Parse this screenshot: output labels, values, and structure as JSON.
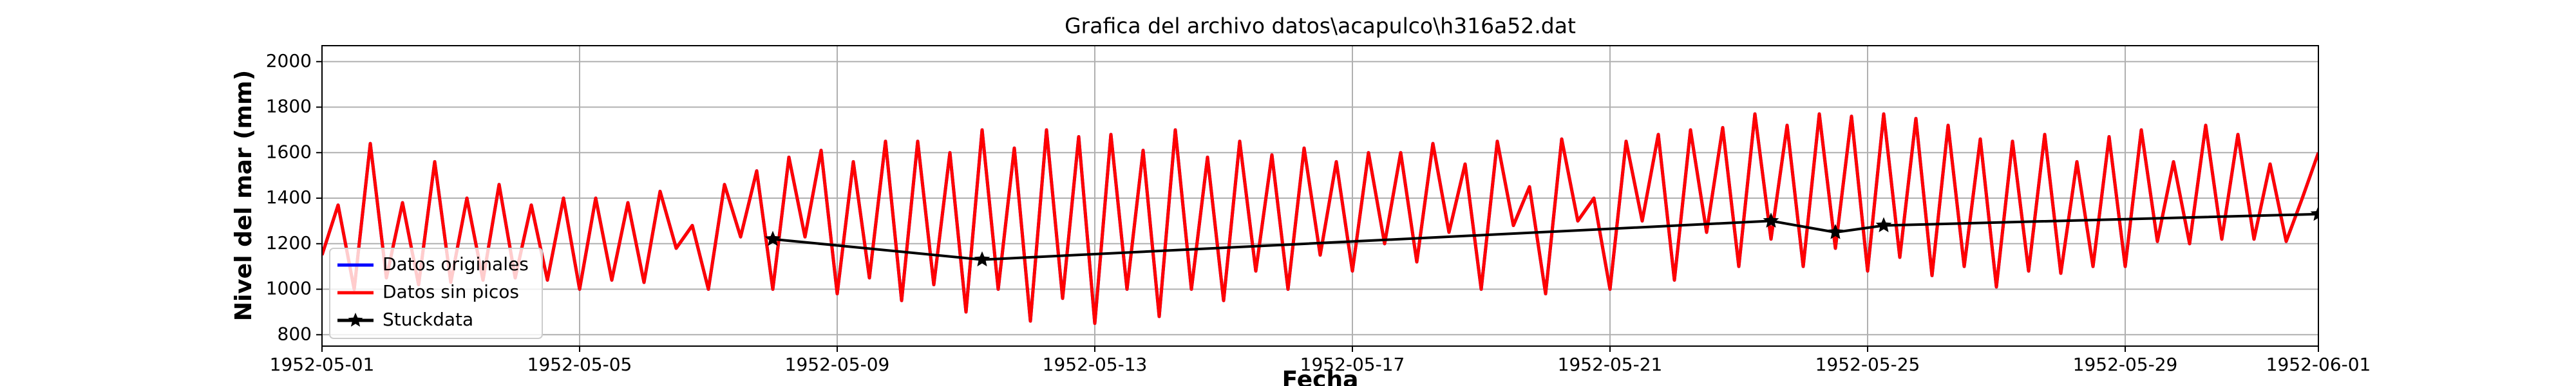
{
  "chart_data": {
    "type": "line",
    "title": "Grafica del archivo datos\\acapulco\\h316a52.dat",
    "xlabel": "Fecha",
    "ylabel": "Nivel del mar (mm)",
    "x": [
      "1952-05-01 00:00",
      "1952-05-01 06:00",
      "1952-05-01 12:00",
      "1952-05-01 18:00",
      "1952-05-02 00:00",
      "1952-05-02 06:00",
      "1952-05-02 12:00",
      "1952-05-02 18:00",
      "1952-05-03 00:00",
      "1952-05-03 06:00",
      "1952-05-03 12:00",
      "1952-05-03 18:00",
      "1952-05-04 00:00",
      "1952-05-04 06:00",
      "1952-05-04 12:00",
      "1952-05-04 18:00",
      "1952-05-05 00:00",
      "1952-05-05 06:00",
      "1952-05-05 12:00",
      "1952-05-05 18:00",
      "1952-05-06 00:00",
      "1952-05-06 06:00",
      "1952-05-06 12:00",
      "1952-05-06 18:00",
      "1952-05-07 00:00",
      "1952-05-07 06:00",
      "1952-05-07 12:00",
      "1952-05-07 18:00",
      "1952-05-08 00:00",
      "1952-05-08 06:00",
      "1952-05-08 12:00",
      "1952-05-08 18:00",
      "1952-05-09 00:00",
      "1952-05-09 06:00",
      "1952-05-09 12:00",
      "1952-05-09 18:00",
      "1952-05-10 00:00",
      "1952-05-10 06:00",
      "1952-05-10 12:00",
      "1952-05-10 18:00",
      "1952-05-11 00:00",
      "1952-05-11 06:00",
      "1952-05-11 12:00",
      "1952-05-11 18:00",
      "1952-05-12 00:00",
      "1952-05-12 06:00",
      "1952-05-12 12:00",
      "1952-05-12 18:00",
      "1952-05-13 00:00",
      "1952-05-13 06:00",
      "1952-05-13 12:00",
      "1952-05-13 18:00",
      "1952-05-14 00:00",
      "1952-05-14 06:00",
      "1952-05-14 12:00",
      "1952-05-14 18:00",
      "1952-05-15 00:00",
      "1952-05-15 06:00",
      "1952-05-15 12:00",
      "1952-05-15 18:00",
      "1952-05-16 00:00",
      "1952-05-16 06:00",
      "1952-05-16 12:00",
      "1952-05-16 18:00",
      "1952-05-17 00:00",
      "1952-05-17 06:00",
      "1952-05-17 12:00",
      "1952-05-17 18:00",
      "1952-05-18 00:00",
      "1952-05-18 06:00",
      "1952-05-18 12:00",
      "1952-05-18 18:00",
      "1952-05-19 00:00",
      "1952-05-19 06:00",
      "1952-05-19 12:00",
      "1952-05-19 18:00",
      "1952-05-20 00:00",
      "1952-05-20 06:00",
      "1952-05-20 12:00",
      "1952-05-20 18:00",
      "1952-05-21 00:00",
      "1952-05-21 06:00",
      "1952-05-21 12:00",
      "1952-05-21 18:00",
      "1952-05-22 00:00",
      "1952-05-22 06:00",
      "1952-05-22 12:00",
      "1952-05-22 18:00",
      "1952-05-23 00:00",
      "1952-05-23 06:00",
      "1952-05-23 12:00",
      "1952-05-23 18:00",
      "1952-05-24 00:00",
      "1952-05-24 06:00",
      "1952-05-24 12:00",
      "1952-05-24 18:00",
      "1952-05-25 00:00",
      "1952-05-25 06:00",
      "1952-05-25 12:00",
      "1952-05-25 18:00",
      "1952-05-26 00:00",
      "1952-05-26 06:00",
      "1952-05-26 12:00",
      "1952-05-26 18:00",
      "1952-05-27 00:00",
      "1952-05-27 06:00",
      "1952-05-27 12:00",
      "1952-05-27 18:00",
      "1952-05-28 00:00",
      "1952-05-28 06:00",
      "1952-05-28 12:00",
      "1952-05-28 18:00",
      "1952-05-29 00:00",
      "1952-05-29 06:00",
      "1952-05-29 12:00",
      "1952-05-29 18:00",
      "1952-05-30 00:00",
      "1952-05-30 06:00",
      "1952-05-30 12:00",
      "1952-05-30 18:00",
      "1952-05-31 00:00",
      "1952-05-31 06:00",
      "1952-05-31 12:00",
      "1952-05-31 18:00",
      "1952-06-01 00:00"
    ],
    "series": [
      {
        "name": "Datos originales",
        "color": "#0000ff",
        "values": [
          1150,
          1370,
          1000,
          1640,
          1050,
          1380,
          1020,
          1560,
          1030,
          1400,
          1040,
          1460,
          1050,
          1370,
          1040,
          1400,
          1000,
          1400,
          1040,
          1380,
          1030,
          1430,
          1180,
          1280,
          1000,
          1460,
          1230,
          1520,
          1000,
          1580,
          1230,
          1610,
          980,
          1560,
          1050,
          1650,
          950,
          1650,
          1020,
          1600,
          900,
          1700,
          1000,
          1620,
          860,
          1700,
          960,
          1670,
          850,
          1680,
          1000,
          1610,
          880,
          1700,
          1000,
          1580,
          950,
          1650,
          1080,
          1590,
          1000,
          1620,
          1150,
          1560,
          1080,
          1600,
          1200,
          1600,
          1120,
          1640,
          1250,
          1550,
          1000,
          1650,
          1280,
          1450,
          980,
          1660,
          1300,
          1400,
          1000,
          1650,
          1300,
          1680,
          1040,
          1700,
          1250,
          1710,
          1100,
          1770,
          1220,
          1720,
          1100,
          1770,
          1180,
          1760,
          1080,
          1770,
          1140,
          1750,
          1060,
          1720,
          1100,
          1660,
          1010,
          1650,
          1080,
          1680,
          1070,
          1560,
          1100,
          1670,
          1100,
          1700,
          1210,
          1560,
          1200,
          1720,
          1220,
          1680,
          1220,
          1550,
          1210,
          1400,
          1600
        ]
      },
      {
        "name": "Datos sin picos",
        "color": "#ff0000",
        "values": [
          1150,
          1370,
          1000,
          1640,
          1050,
          1380,
          1020,
          1560,
          1030,
          1400,
          1040,
          1460,
          1050,
          1370,
          1040,
          1400,
          1000,
          1400,
          1040,
          1380,
          1030,
          1430,
          1180,
          1280,
          1000,
          1460,
          1230,
          1520,
          1000,
          1580,
          1230,
          1610,
          980,
          1560,
          1050,
          1650,
          950,
          1650,
          1020,
          1600,
          900,
          1700,
          1000,
          1620,
          860,
          1700,
          960,
          1670,
          850,
          1680,
          1000,
          1610,
          880,
          1700,
          1000,
          1580,
          950,
          1650,
          1080,
          1590,
          1000,
          1620,
          1150,
          1560,
          1080,
          1600,
          1200,
          1600,
          1120,
          1640,
          1250,
          1550,
          1000,
          1650,
          1280,
          1450,
          980,
          1660,
          1300,
          1400,
          1000,
          1650,
          1300,
          1680,
          1040,
          1700,
          1250,
          1710,
          1100,
          1770,
          1220,
          1720,
          1100,
          1770,
          1180,
          1760,
          1080,
          1770,
          1140,
          1750,
          1060,
          1720,
          1100,
          1660,
          1010,
          1650,
          1080,
          1680,
          1070,
          1560,
          1100,
          1670,
          1100,
          1700,
          1210,
          1560,
          1200,
          1720,
          1220,
          1680,
          1220,
          1550,
          1210,
          1400,
          1600
        ]
      },
      {
        "name": "Stuckdata",
        "color": "#000000",
        "marker": "star",
        "x": [
          "1952-05-08 00:00",
          "1952-05-11 06:00",
          "1952-05-23 12:00",
          "1952-05-24 12:00",
          "1952-05-25 06:00",
          "1952-06-01 00:00"
        ],
        "values": [
          1220,
          1130,
          1300,
          1250,
          1280,
          1330
        ]
      }
    ],
    "xlim": [
      "1952-05-01",
      "1952-06-01"
    ],
    "xticks": [
      "1952-05-01",
      "1952-05-05",
      "1952-05-09",
      "1952-05-13",
      "1952-05-17",
      "1952-05-21",
      "1952-05-25",
      "1952-05-29",
      "1952-06-01"
    ],
    "ylim": [
      750,
      2070
    ],
    "yticks": [
      800,
      1000,
      1200,
      1400,
      1600,
      1800,
      2000
    ],
    "grid": true,
    "legend": "lower left"
  }
}
